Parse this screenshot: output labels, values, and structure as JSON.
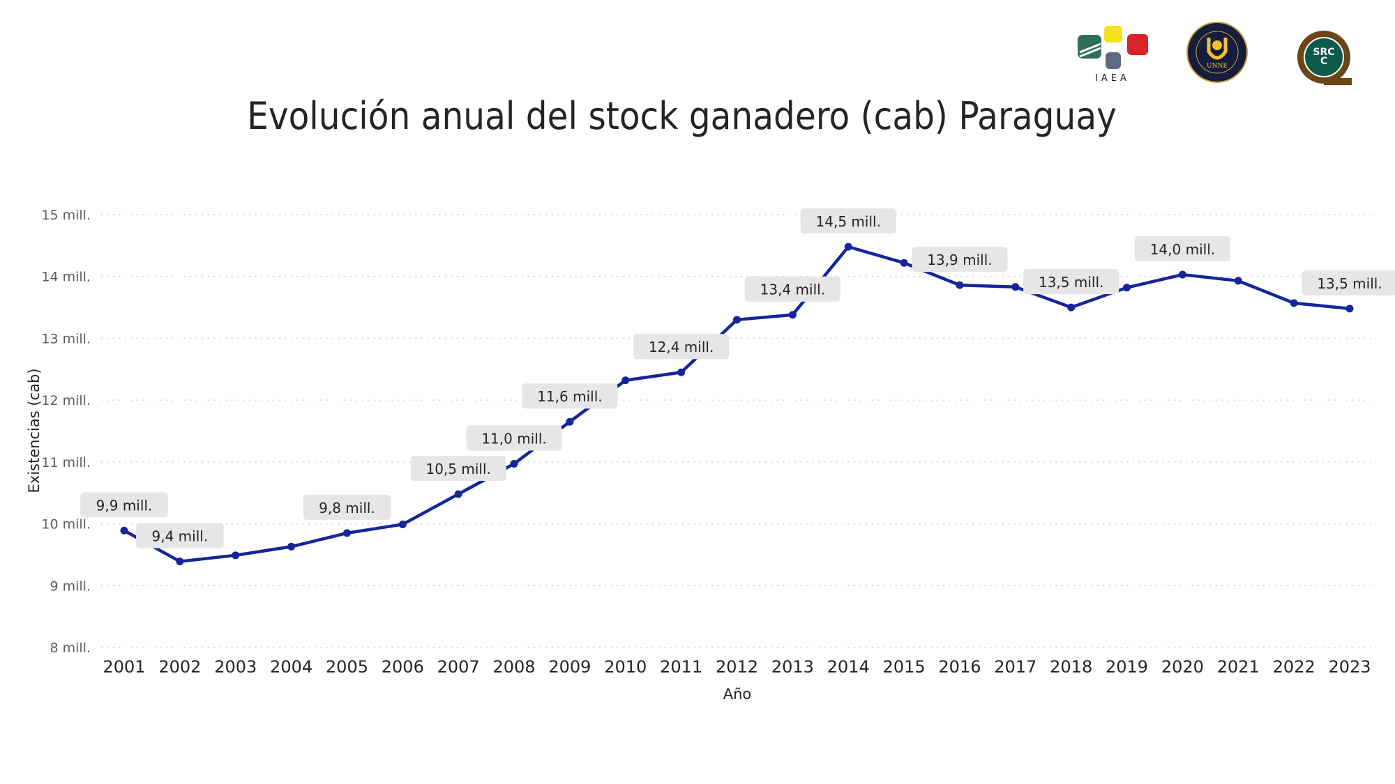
{
  "logos": {
    "iaea": "IAEA",
    "unne": "UNNE",
    "unne_ring": "FACULTAD DE CIENCIAS VETERINARIAS · CORRIENTES · ARGENTINA",
    "srcc": "SRCC"
  },
  "chart_data": {
    "type": "line",
    "title": "Evolución anual del stock ganadero (cab) Paraguay",
    "xlabel": "Año",
    "ylabel": "Existencias (cab)",
    "ylim": [
      8,
      15
    ],
    "yticks": [
      8,
      9,
      10,
      11,
      12,
      13,
      14,
      15
    ],
    "ytick_labels": [
      "8 mill.",
      "9 mill.",
      "10 mill.",
      "11 mill.",
      "12 mill.",
      "13 mill.",
      "14 mill.",
      "15 mill."
    ],
    "grid": "horizontal-dotted",
    "color": "#15259a",
    "x": [
      "2001",
      "2002",
      "2003",
      "2004",
      "2005",
      "2006",
      "2007",
      "2008",
      "2009",
      "2010",
      "2011",
      "2012",
      "2013",
      "2014",
      "2015",
      "2016",
      "2017",
      "2018",
      "2019",
      "2020",
      "2021",
      "2022",
      "2023"
    ],
    "values": [
      9.89,
      9.39,
      9.49,
      9.63,
      9.85,
      9.99,
      10.48,
      10.97,
      11.65,
      12.32,
      12.45,
      13.3,
      13.38,
      14.48,
      14.22,
      13.86,
      13.83,
      13.5,
      13.82,
      14.03,
      13.93,
      13.57,
      13.48
    ],
    "data_labels": [
      {
        "x": "2001",
        "text": "9,9 mill."
      },
      {
        "x": "2002",
        "text": "9,4 mill."
      },
      {
        "x": "2005",
        "text": "9,8 mill."
      },
      {
        "x": "2007",
        "text": "10,5 mill."
      },
      {
        "x": "2008",
        "text": "11,0 mill."
      },
      {
        "x": "2009",
        "text": "11,6 mill."
      },
      {
        "x": "2011",
        "text": "12,4 mill."
      },
      {
        "x": "2013",
        "text": "13,4 mill."
      },
      {
        "x": "2014",
        "text": "14,5 mill."
      },
      {
        "x": "2016",
        "text": "13,9 mill."
      },
      {
        "x": "2018",
        "text": "13,5 mill."
      },
      {
        "x": "2020",
        "text": "14,0 mill."
      },
      {
        "x": "2023",
        "text": "13,5 mill."
      }
    ]
  }
}
